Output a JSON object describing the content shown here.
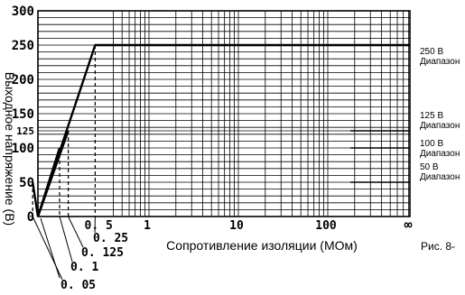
{
  "chart_data": {
    "type": "line",
    "xlabel": "Сопротивление изоляции (МОм)",
    "ylabel": "Выходное напряжение (В)",
    "figure_label": "Рис. 8-",
    "x_scale": "log",
    "ylim": [
      0,
      300
    ],
    "y_ticks": [
      "0",
      "50",
      "100",
      "125",
      "150",
      "200",
      "250",
      "300"
    ],
    "x_ticks": [
      "0.5",
      "1",
      "10",
      "100",
      "∞"
    ],
    "low_ticks": [
      "0.25",
      "0.125",
      "0.1",
      "0.05"
    ],
    "series": [
      {
        "range": "50 В",
        "range_word": "Диапазон",
        "x": [
          0,
          0.05,
          "∞"
        ],
        "y": [
          0,
          50,
          50
        ]
      },
      {
        "range": "100 В",
        "range_word": "Диапазон",
        "x": [
          0,
          0.1,
          "∞"
        ],
        "y": [
          0,
          100,
          100
        ]
      },
      {
        "range": "125 В",
        "range_word": "Диапазон",
        "x": [
          0,
          0.125,
          "∞"
        ],
        "y": [
          0,
          125,
          125
        ]
      },
      {
        "range": "250 В",
        "range_word": "Диапазон",
        "x": [
          0,
          0.25,
          "∞"
        ],
        "y": [
          0,
          250,
          250
        ]
      }
    ],
    "grid": true
  }
}
